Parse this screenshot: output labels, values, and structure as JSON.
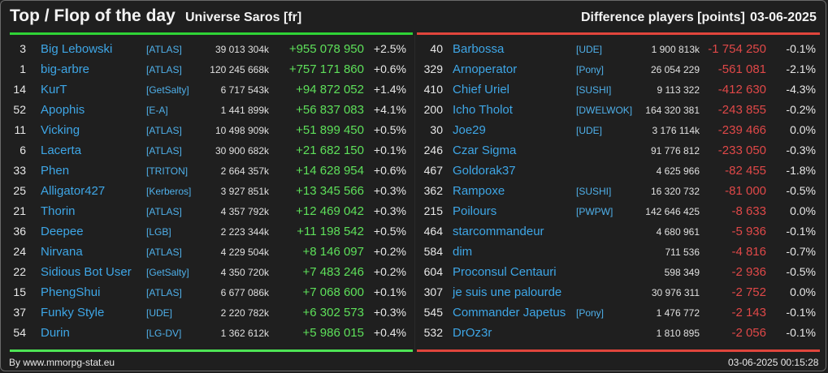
{
  "header": {
    "title": "Top / Flop of the day",
    "universe": "Universe Saros [fr]",
    "difference_label": "Difference players [points]",
    "date": "03-06-2025"
  },
  "colors": {
    "top_accent": "#2fd336",
    "flop_accent": "#e0453c",
    "link": "#3ea6e6",
    "positive": "#5ee05a",
    "negative": "#e04848"
  },
  "top": [
    {
      "rank": "3",
      "name": "Big Lebowski",
      "alliance": "[ATLAS]",
      "points": "39 013 304k",
      "delta": "+955 078 950",
      "pct": "+2.5%"
    },
    {
      "rank": "1",
      "name": "big-arbre",
      "alliance": "[ATLAS]",
      "points": "120 245 668k",
      "delta": "+757 171 860",
      "pct": "+0.6%"
    },
    {
      "rank": "14",
      "name": "KurT",
      "alliance": "[GetSalty]",
      "points": "6 717 543k",
      "delta": "+94 872 052",
      "pct": "+1.4%"
    },
    {
      "rank": "52",
      "name": "Apophis",
      "alliance": "[E-A]",
      "points": "1 441 899k",
      "delta": "+56 837 083",
      "pct": "+4.1%"
    },
    {
      "rank": "11",
      "name": "Vicking",
      "alliance": "[ATLAS]",
      "points": "10 498 909k",
      "delta": "+51 899 450",
      "pct": "+0.5%"
    },
    {
      "rank": "6",
      "name": "Lacerta",
      "alliance": "[ATLAS]",
      "points": "30 900 682k",
      "delta": "+21 682 150",
      "pct": "+0.1%"
    },
    {
      "rank": "33",
      "name": "Phen",
      "alliance": "[TRITON]",
      "points": "2 664 357k",
      "delta": "+14 628 954",
      "pct": "+0.6%"
    },
    {
      "rank": "25",
      "name": "Alligator427",
      "alliance": "[Kerberos]",
      "points": "3 927 851k",
      "delta": "+13 345 566",
      "pct": "+0.3%"
    },
    {
      "rank": "21",
      "name": "Thorin",
      "alliance": "[ATLAS]",
      "points": "4 357 792k",
      "delta": "+12 469 042",
      "pct": "+0.3%"
    },
    {
      "rank": "36",
      "name": "Deepee",
      "alliance": "[LGB]",
      "points": "2 223 344k",
      "delta": "+11 198 542",
      "pct": "+0.5%"
    },
    {
      "rank": "24",
      "name": "Nirvana",
      "alliance": "[ATLAS]",
      "points": "4 229 504k",
      "delta": "+8 146 097",
      "pct": "+0.2%"
    },
    {
      "rank": "22",
      "name": "Sidious Bot User",
      "alliance": "[GetSalty]",
      "points": "4 350 720k",
      "delta": "+7 483 246",
      "pct": "+0.2%"
    },
    {
      "rank": "15",
      "name": "PhengShui",
      "alliance": "[ATLAS]",
      "points": "6 677 086k",
      "delta": "+7 068 600",
      "pct": "+0.1%"
    },
    {
      "rank": "37",
      "name": "Funky Style",
      "alliance": "[UDE]",
      "points": "2 220 782k",
      "delta": "+6 302 573",
      "pct": "+0.3%"
    },
    {
      "rank": "54",
      "name": "Durin",
      "alliance": "[LG-DV]",
      "points": "1 362 612k",
      "delta": "+5 986 015",
      "pct": "+0.4%"
    }
  ],
  "flop": [
    {
      "rank": "40",
      "name": "Barbossa",
      "alliance": "[UDE]",
      "points": "1 900 813k",
      "delta": "-1 754 250",
      "pct": "-0.1%"
    },
    {
      "rank": "329",
      "name": "Arnoperator",
      "alliance": "[Pony]",
      "points": "26 054 229",
      "delta": "-561 081",
      "pct": "-2.1%"
    },
    {
      "rank": "410",
      "name": "Chief Uriel",
      "alliance": "[SUSHI]",
      "points": "9 113 322",
      "delta": "-412 630",
      "pct": "-4.3%"
    },
    {
      "rank": "200",
      "name": "Icho Tholot",
      "alliance": "[DWELWOK]",
      "points": "164 320 381",
      "delta": "-243 855",
      "pct": "-0.2%"
    },
    {
      "rank": "30",
      "name": "Joe29",
      "alliance": "[UDE]",
      "points": "3 176 114k",
      "delta": "-239 466",
      "pct": "0.0%"
    },
    {
      "rank": "246",
      "name": "Czar Sigma",
      "alliance": "",
      "points": "91 776 812",
      "delta": "-233 050",
      "pct": "-0.3%"
    },
    {
      "rank": "467",
      "name": "Goldorak37",
      "alliance": "",
      "points": "4 625 966",
      "delta": "-82 455",
      "pct": "-1.8%"
    },
    {
      "rank": "362",
      "name": "Rampoxe",
      "alliance": "[SUSHI]",
      "points": "16 320 732",
      "delta": "-81 000",
      "pct": "-0.5%"
    },
    {
      "rank": "215",
      "name": "Poilours",
      "alliance": "[PWPW]",
      "points": "142 646 425",
      "delta": "-8 633",
      "pct": "0.0%"
    },
    {
      "rank": "464",
      "name": "starcommandeur",
      "alliance": "",
      "points": "4 680 961",
      "delta": "-5 936",
      "pct": "-0.1%"
    },
    {
      "rank": "584",
      "name": "dim",
      "alliance": "",
      "points": "711 536",
      "delta": "-4 816",
      "pct": "-0.7%"
    },
    {
      "rank": "604",
      "name": "Proconsul Centauri",
      "alliance": "",
      "points": "598 349",
      "delta": "-2 936",
      "pct": "-0.5%"
    },
    {
      "rank": "307",
      "name": "je suis une palourde",
      "alliance": "",
      "points": "30 976 311",
      "delta": "-2 752",
      "pct": "0.0%"
    },
    {
      "rank": "545",
      "name": "Commander Japetus",
      "alliance": "[Pony]",
      "points": "1 476 772",
      "delta": "-2 143",
      "pct": "-0.1%"
    },
    {
      "rank": "532",
      "name": "DrOz3r",
      "alliance": "",
      "points": "1 810 895",
      "delta": "-2 056",
      "pct": "-0.1%"
    }
  ],
  "footer": {
    "credit": "By www.mmorpg-stat.eu",
    "timestamp": "03-06-2025 00:15:28"
  }
}
